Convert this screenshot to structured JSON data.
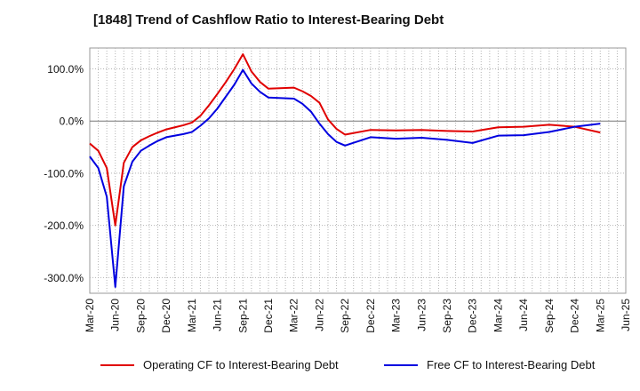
{
  "title": "[1848]  Trend of Cashflow Ratio to Interest-Bearing Debt",
  "colors": {
    "operating": "#e00000",
    "free": "#0000e0"
  },
  "chart_data": {
    "type": "line",
    "title": "[1848]  Trend of Cashflow Ratio to Interest-Bearing Debt",
    "xlabel": "",
    "ylabel": "",
    "x_ticks": [
      "Mar-20",
      "Jun-20",
      "Sep-20",
      "Dec-20",
      "Mar-21",
      "Jun-21",
      "Sep-21",
      "Dec-21",
      "Mar-22",
      "Jun-22",
      "Sep-22",
      "Dec-22",
      "Mar-23",
      "Jun-23",
      "Sep-23",
      "Dec-23",
      "Mar-24",
      "Jun-24",
      "Sep-24",
      "Dec-24",
      "Mar-25",
      "Jun-25"
    ],
    "y_ticks": [
      100,
      0,
      -100,
      -200,
      -300
    ],
    "y_tick_labels": [
      "100.0%",
      "0.0%",
      "-100.0%",
      "-200.0%",
      "-300.0%"
    ],
    "ylim": [
      -330,
      140
    ],
    "x_range_months": [
      "Mar-20",
      "Jun-25"
    ],
    "grid": true,
    "legend_position": "bottom",
    "series": [
      {
        "name": "Operating CF to Interest-Bearing Debt",
        "color": "#e00000",
        "points": [
          [
            "Mar-20",
            -43
          ],
          [
            "Apr-20",
            -57
          ],
          [
            "May-20",
            -90
          ],
          [
            "Jun-20",
            -200
          ],
          [
            "Jul-20",
            -80
          ],
          [
            "Aug-20",
            -50
          ],
          [
            "Sep-20",
            -37
          ],
          [
            "Oct-20",
            -29
          ],
          [
            "Nov-20",
            -22
          ],
          [
            "Dec-20",
            -16
          ],
          [
            "Jan-21",
            -12
          ],
          [
            "Feb-21",
            -8
          ],
          [
            "Mar-21",
            -3
          ],
          [
            "Apr-21",
            10
          ],
          [
            "May-21",
            30
          ],
          [
            "Jun-21",
            52
          ],
          [
            "Jul-21",
            75
          ],
          [
            "Aug-21",
            100
          ],
          [
            "Sep-21",
            128
          ],
          [
            "Oct-21",
            95
          ],
          [
            "Nov-21",
            75
          ],
          [
            "Dec-21",
            62
          ],
          [
            "Mar-22",
            64
          ],
          [
            "Apr-22",
            57
          ],
          [
            "May-22",
            48
          ],
          [
            "Jun-22",
            35
          ],
          [
            "Jul-22",
            3
          ],
          [
            "Aug-22",
            -15
          ],
          [
            "Sep-22",
            -26
          ],
          [
            "Dec-22",
            -17
          ],
          [
            "Mar-23",
            -18
          ],
          [
            "Jun-23",
            -17
          ],
          [
            "Sep-23",
            -19
          ],
          [
            "Dec-23",
            -20
          ],
          [
            "Mar-24",
            -12
          ],
          [
            "Jun-24",
            -11
          ],
          [
            "Sep-24",
            -7
          ],
          [
            "Dec-24",
            -11
          ],
          [
            "Mar-25",
            -22
          ]
        ]
      },
      {
        "name": "Free CF to Interest-Bearing Debt",
        "color": "#0000e0",
        "points": [
          [
            "Mar-20",
            -68
          ],
          [
            "Apr-20",
            -90
          ],
          [
            "May-20",
            -145
          ],
          [
            "Jun-20",
            -318
          ],
          [
            "Jul-20",
            -125
          ],
          [
            "Aug-20",
            -78
          ],
          [
            "Sep-20",
            -57
          ],
          [
            "Oct-20",
            -47
          ],
          [
            "Nov-20",
            -38
          ],
          [
            "Dec-20",
            -31
          ],
          [
            "Jan-21",
            -28
          ],
          [
            "Feb-21",
            -25
          ],
          [
            "Mar-21",
            -21
          ],
          [
            "Apr-21",
            -9
          ],
          [
            "May-21",
            5
          ],
          [
            "Jun-21",
            24
          ],
          [
            "Jul-21",
            47
          ],
          [
            "Aug-21",
            70
          ],
          [
            "Sep-21",
            98
          ],
          [
            "Oct-21",
            72
          ],
          [
            "Nov-21",
            56
          ],
          [
            "Dec-21",
            45
          ],
          [
            "Mar-22",
            43
          ],
          [
            "Apr-22",
            33
          ],
          [
            "May-22",
            18
          ],
          [
            "Jun-22",
            -5
          ],
          [
            "Jul-22",
            -25
          ],
          [
            "Aug-22",
            -40
          ],
          [
            "Sep-22",
            -47
          ],
          [
            "Dec-22",
            -31
          ],
          [
            "Mar-23",
            -34
          ],
          [
            "Jun-23",
            -32
          ],
          [
            "Sep-23",
            -36
          ],
          [
            "Dec-23",
            -42
          ],
          [
            "Mar-24",
            -28
          ],
          [
            "Jun-24",
            -27
          ],
          [
            "Sep-24",
            -21
          ],
          [
            "Dec-24",
            -11
          ],
          [
            "Mar-25",
            -5
          ]
        ]
      }
    ]
  }
}
